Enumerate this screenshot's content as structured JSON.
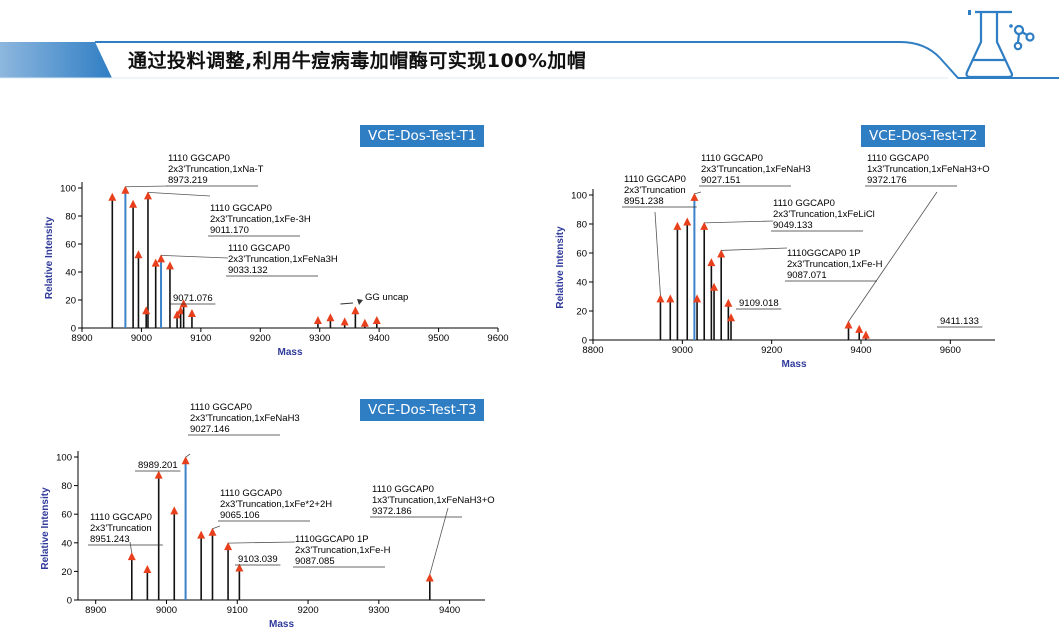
{
  "banner": {
    "title": "通过投料调整,利用牛痘病毒加帽酶可实现100%加帽",
    "icon": "flask-molecule-icon",
    "colors": {
      "bar": "#2f7ec4",
      "bar_light": "#dbe8f4",
      "icon": "#2f7ec4"
    }
  },
  "chart_data": [
    {
      "type": "bar",
      "tag": "VCE-Dos-Test-T1",
      "xlabel": "Mass",
      "ylabel": "Relative Intensity",
      "xlim": [
        8900,
        9600
      ],
      "ylim": [
        0,
        100
      ],
      "xticks": [
        8900,
        9000,
        9100,
        9200,
        9300,
        9400,
        9500,
        9600
      ],
      "yticks": [
        0,
        20,
        40,
        60,
        80,
        100
      ],
      "peaks": [
        {
          "x": 8951,
          "y": 93,
          "color": "black"
        },
        {
          "x": 8973,
          "y": 98,
          "color": "blue"
        },
        {
          "x": 8986,
          "y": 88,
          "color": "black"
        },
        {
          "x": 8995,
          "y": 52,
          "color": "black"
        },
        {
          "x": 9011,
          "y": 94,
          "color": "black"
        },
        {
          "x": 9008,
          "y": 12,
          "color": "black"
        },
        {
          "x": 9024,
          "y": 46,
          "color": "black"
        },
        {
          "x": 9033,
          "y": 49,
          "color": "blue"
        },
        {
          "x": 9048,
          "y": 44,
          "color": "black"
        },
        {
          "x": 9060,
          "y": 9,
          "color": "black"
        },
        {
          "x": 9066,
          "y": 12,
          "color": "black"
        },
        {
          "x": 9071,
          "y": 17,
          "color": "black"
        },
        {
          "x": 9085,
          "y": 10,
          "color": "black"
        },
        {
          "x": 9297,
          "y": 5,
          "color": "black"
        },
        {
          "x": 9318,
          "y": 7,
          "color": "black"
        },
        {
          "x": 9342,
          "y": 4,
          "color": "black"
        },
        {
          "x": 9360,
          "y": 12,
          "color": "black"
        },
        {
          "x": 9376,
          "y": 3,
          "color": "black"
        },
        {
          "x": 9396,
          "y": 5,
          "color": "black"
        }
      ],
      "annotations": [
        {
          "lines": [
            "1110 GGCAP0",
            "2x3'Truncation,1xNa-T",
            "8973.219"
          ]
        },
        {
          "lines": [
            "1110 GGCAP0",
            "2x3'Truncation,1xFe-3H",
            "9011.170"
          ]
        },
        {
          "lines": [
            "1110 GGCAP0",
            "2x3'Truncation,1xFeNa3H",
            "9033.132"
          ]
        },
        {
          "lines": [
            "9071.076"
          ]
        },
        {
          "lines": [
            "GG uncap"
          ]
        }
      ]
    },
    {
      "type": "bar",
      "tag": "VCE-Dos-Test-T2",
      "xlabel": "Mass",
      "ylabel": "Relative Intensity",
      "xlim": [
        8800,
        9700
      ],
      "ylim": [
        0,
        100
      ],
      "xticks": [
        8800,
        9000,
        9200,
        9400,
        9600
      ],
      "yticks": [
        0,
        20,
        40,
        60,
        80,
        100
      ],
      "peaks": [
        {
          "x": 8951,
          "y": 28,
          "color": "black"
        },
        {
          "x": 8973,
          "y": 28,
          "color": "black"
        },
        {
          "x": 8989,
          "y": 78,
          "color": "black"
        },
        {
          "x": 9011,
          "y": 81,
          "color": "black"
        },
        {
          "x": 9027,
          "y": 98,
          "color": "blue"
        },
        {
          "x": 9033,
          "y": 28,
          "color": "black"
        },
        {
          "x": 9049,
          "y": 78,
          "color": "black"
        },
        {
          "x": 9065,
          "y": 53,
          "color": "black"
        },
        {
          "x": 9071,
          "y": 36,
          "color": "black"
        },
        {
          "x": 9087,
          "y": 59,
          "color": "black"
        },
        {
          "x": 9103,
          "y": 25,
          "color": "black"
        },
        {
          "x": 9109,
          "y": 15,
          "color": "black"
        },
        {
          "x": 9372,
          "y": 10,
          "color": "black"
        },
        {
          "x": 9396,
          "y": 7,
          "color": "black"
        },
        {
          "x": 9411,
          "y": 3,
          "color": "black"
        }
      ],
      "annotations": [
        {
          "lines": [
            "1110 GGCAP0",
            "2x3'Truncation",
            "8951.238"
          ]
        },
        {
          "lines": [
            "1110 GGCAP0",
            "2x3'Truncation,1xFeNaH3",
            "9027.151"
          ]
        },
        {
          "lines": [
            "1110 GGCAP0",
            "1x3'Truncation,1xFeNaH3+O",
            "9372.176"
          ]
        },
        {
          "lines": [
            "1110 GGCAP0",
            "2x3'Truncation,1xFeLiCl",
            "9049.133"
          ]
        },
        {
          "lines": [
            "1110GGCAP0 1P",
            "2x3'Truncation,1xFe-H",
            "9087.071"
          ]
        },
        {
          "lines": [
            "9109.018"
          ]
        },
        {
          "lines": [
            "9411.133"
          ]
        }
      ]
    },
    {
      "type": "bar",
      "tag": "VCE-Dos-Test-T3",
      "xlabel": "Mass",
      "ylabel": "Relative Intensity",
      "xlim": [
        8875,
        9450
      ],
      "ylim": [
        0,
        100
      ],
      "xticks": [
        8900,
        9000,
        9100,
        9200,
        9300,
        9400
      ],
      "yticks": [
        0,
        20,
        40,
        60,
        80,
        100
      ],
      "peaks": [
        {
          "x": 8951,
          "y": 30,
          "color": "black"
        },
        {
          "x": 8973,
          "y": 21,
          "color": "black"
        },
        {
          "x": 8989,
          "y": 87,
          "color": "black"
        },
        {
          "x": 9011,
          "y": 62,
          "color": "black"
        },
        {
          "x": 9027,
          "y": 97,
          "color": "blue"
        },
        {
          "x": 9049,
          "y": 45,
          "color": "black"
        },
        {
          "x": 9065,
          "y": 47,
          "color": "black"
        },
        {
          "x": 9087,
          "y": 37,
          "color": "black"
        },
        {
          "x": 9103,
          "y": 22,
          "color": "black"
        },
        {
          "x": 9372,
          "y": 15,
          "color": "black"
        }
      ],
      "annotations": [
        {
          "lines": [
            "1110 GGCAP0",
            "2x3'Truncation,1xFeNaH3",
            "9027.146"
          ]
        },
        {
          "lines": [
            "8989.201"
          ]
        },
        {
          "lines": [
            "1110 GGCAP0",
            "2x3'Truncation,1xFe*2+2H",
            "9065.106"
          ]
        },
        {
          "lines": [
            "1110 GGCAP0",
            "1x3'Truncation,1xFeNaH3+O",
            "9372.186"
          ]
        },
        {
          "lines": [
            "1110 GGCAP0",
            "2x3'Truncation",
            "8951.243"
          ]
        },
        {
          "lines": [
            "1110GGCAP0 1P",
            "2x3'Truncation,1xFe-H",
            "9087.085"
          ]
        },
        {
          "lines": [
            "9103.039"
          ]
        }
      ]
    }
  ]
}
